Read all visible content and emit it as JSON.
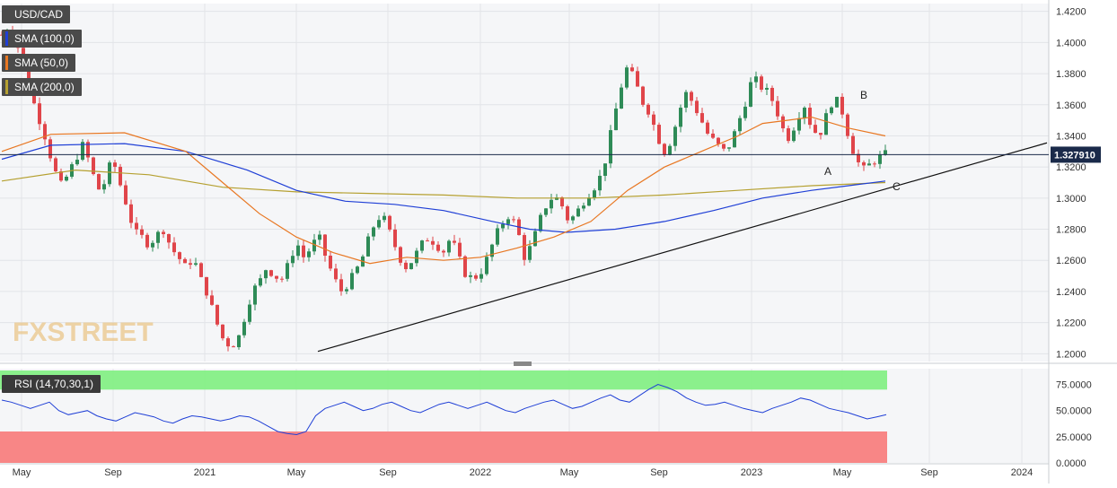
{
  "chart_data": [
    {
      "type": "candlestick",
      "title": "USD/CAD",
      "overlays": [
        {
          "name": "SMA (100,0)",
          "color": "#1f3fd6"
        },
        {
          "name": "SMA (50,0)",
          "color": "#e87722"
        },
        {
          "name": "SMA (200,0)",
          "color": "#b5a030"
        }
      ],
      "ylim": [
        1.195,
        1.425
      ],
      "y_ticks": [
        "1.4200",
        "1.4000",
        "1.3800",
        "1.3600",
        "1.3400",
        "1.3200",
        "1.3000",
        "1.2800",
        "1.2600",
        "1.2400",
        "1.2200",
        "1.2000"
      ],
      "x_ticks": [
        "May",
        "Sep",
        "2021",
        "May",
        "Sep",
        "2022",
        "May",
        "Sep",
        "2023",
        "May",
        "Sep",
        "2024"
      ],
      "last_price_label": "1.327910",
      "last_price": 1.32791,
      "annotations": [
        "A",
        "B",
        "C"
      ],
      "trendline": {
        "from": [
          "2021-05",
          "1.2015"
        ],
        "to": [
          "2024-01",
          "1.3355"
        ]
      },
      "grid": true,
      "legend_position": "top-left",
      "watermark": "FXSTREET",
      "price_path": [
        [
          0,
          1.405
        ],
        [
          3,
          1.41
        ],
        [
          6,
          1.4
        ],
        [
          9,
          1.385
        ],
        [
          12,
          1.366
        ],
        [
          15,
          1.352
        ],
        [
          18,
          1.338
        ],
        [
          21,
          1.32
        ],
        [
          24,
          1.308
        ],
        [
          27,
          1.315
        ],
        [
          30,
          1.325
        ],
        [
          33,
          1.334
        ],
        [
          36,
          1.322
        ],
        [
          39,
          1.305
        ],
        [
          42,
          1.31
        ],
        [
          45,
          1.326
        ],
        [
          48,
          1.31
        ],
        [
          51,
          1.295
        ],
        [
          54,
          1.278
        ],
        [
          57,
          1.275
        ],
        [
          60,
          1.27
        ],
        [
          63,
          1.276
        ],
        [
          66,
          1.28
        ],
        [
          69,
          1.268
        ],
        [
          72,
          1.262
        ],
        [
          75,
          1.255
        ],
        [
          78,
          1.262
        ],
        [
          81,
          1.248
        ],
        [
          84,
          1.238
        ],
        [
          87,
          1.222
        ],
        [
          90,
          1.21
        ],
        [
          93,
          1.205
        ],
        [
          96,
          1.208
        ],
        [
          99,
          1.224
        ],
        [
          102,
          1.24
        ],
        [
          105,
          1.246
        ],
        [
          108,
          1.256
        ],
        [
          111,
          1.25
        ],
        [
          114,
          1.248
        ],
        [
          117,
          1.258
        ],
        [
          120,
          1.272
        ],
        [
          123,
          1.262
        ],
        [
          126,
          1.268
        ],
        [
          129,
          1.276
        ],
        [
          132,
          1.262
        ],
        [
          135,
          1.25
        ],
        [
          138,
          1.24
        ],
        [
          141,
          1.245
        ],
        [
          144,
          1.252
        ],
        [
          147,
          1.262
        ],
        [
          150,
          1.276
        ],
        [
          153,
          1.288
        ],
        [
          156,
          1.286
        ],
        [
          159,
          1.274
        ],
        [
          162,
          1.262
        ],
        [
          165,
          1.255
        ],
        [
          168,
          1.262
        ],
        [
          171,
          1.27
        ],
        [
          174,
          1.275
        ],
        [
          177,
          1.27
        ],
        [
          180,
          1.266
        ],
        [
          183,
          1.275
        ],
        [
          186,
          1.262
        ],
        [
          189,
          1.251
        ],
        [
          192,
          1.248
        ],
        [
          195,
          1.252
        ],
        [
          198,
          1.262
        ],
        [
          201,
          1.275
        ],
        [
          204,
          1.284
        ],
        [
          207,
          1.29
        ],
        [
          210,
          1.28
        ],
        [
          213,
          1.262
        ],
        [
          216,
          1.27
        ],
        [
          219,
          1.285
        ],
        [
          222,
          1.296
        ],
        [
          225,
          1.302
        ],
        [
          228,
          1.296
        ],
        [
          231,
          1.285
        ],
        [
          234,
          1.29
        ],
        [
          237,
          1.298
        ],
        [
          240,
          1.305
        ],
        [
          243,
          1.31
        ],
        [
          246,
          1.325
        ],
        [
          249,
          1.348
        ],
        [
          252,
          1.37
        ],
        [
          255,
          1.385
        ],
        [
          258,
          1.375
        ],
        [
          261,
          1.362
        ],
        [
          264,
          1.355
        ],
        [
          267,
          1.34
        ],
        [
          270,
          1.33
        ],
        [
          273,
          1.338
        ],
        [
          276,
          1.356
        ],
        [
          279,
          1.368
        ],
        [
          282,
          1.36
        ],
        [
          285,
          1.35
        ],
        [
          288,
          1.34
        ],
        [
          291,
          1.335
        ],
        [
          294,
          1.33
        ],
        [
          297,
          1.335
        ],
        [
          300,
          1.348
        ],
        [
          303,
          1.362
        ],
        [
          306,
          1.378
        ],
        [
          309,
          1.372
        ],
        [
          312,
          1.368
        ],
        [
          315,
          1.36
        ],
        [
          318,
          1.345
        ],
        [
          321,
          1.338
        ],
        [
          324,
          1.352
        ],
        [
          327,
          1.36
        ],
        [
          330,
          1.345
        ],
        [
          333,
          1.34
        ],
        [
          336,
          1.353
        ],
        [
          339,
          1.365
        ],
        [
          342,
          1.358
        ],
        [
          345,
          1.34
        ],
        [
          348,
          1.325
        ],
        [
          351,
          1.318
        ],
        [
          354,
          1.322
        ],
        [
          357,
          1.326
        ],
        [
          360,
          1.328
        ]
      ],
      "sma50": [
        [
          0,
          1.33
        ],
        [
          20,
          1.341
        ],
        [
          50,
          1.342
        ],
        [
          75,
          1.33
        ],
        [
          90,
          1.31
        ],
        [
          105,
          1.29
        ],
        [
          120,
          1.275
        ],
        [
          135,
          1.265
        ],
        [
          150,
          1.258
        ],
        [
          165,
          1.262
        ],
        [
          180,
          1.26
        ],
        [
          195,
          1.262
        ],
        [
          210,
          1.268
        ],
        [
          225,
          1.275
        ],
        [
          240,
          1.285
        ],
        [
          255,
          1.305
        ],
        [
          270,
          1.32
        ],
        [
          285,
          1.33
        ],
        [
          300,
          1.34
        ],
        [
          310,
          1.348
        ],
        [
          320,
          1.35
        ],
        [
          330,
          1.352
        ],
        [
          345,
          1.345
        ],
        [
          360,
          1.34
        ]
      ],
      "sma100": [
        [
          0,
          1.325
        ],
        [
          20,
          1.334
        ],
        [
          50,
          1.335
        ],
        [
          75,
          1.33
        ],
        [
          100,
          1.318
        ],
        [
          120,
          1.305
        ],
        [
          140,
          1.298
        ],
        [
          160,
          1.296
        ],
        [
          180,
          1.292
        ],
        [
          200,
          1.285
        ],
        [
          215,
          1.28
        ],
        [
          230,
          1.278
        ],
        [
          250,
          1.28
        ],
        [
          270,
          1.285
        ],
        [
          290,
          1.292
        ],
        [
          310,
          1.3
        ],
        [
          330,
          1.305
        ],
        [
          345,
          1.308
        ],
        [
          360,
          1.311
        ]
      ],
      "sma200": [
        [
          0,
          1.311
        ],
        [
          30,
          1.318
        ],
        [
          60,
          1.315
        ],
        [
          90,
          1.307
        ],
        [
          120,
          1.304
        ],
        [
          150,
          1.303
        ],
        [
          180,
          1.302
        ],
        [
          210,
          1.3
        ],
        [
          240,
          1.3
        ],
        [
          270,
          1.302
        ],
        [
          300,
          1.305
        ],
        [
          330,
          1.308
        ],
        [
          360,
          1.31
        ]
      ]
    },
    {
      "type": "line",
      "title": "RSI (14,70,30,1)",
      "ylim": [
        0,
        90
      ],
      "y_ticks": [
        "75.0000",
        "50.0000",
        "25.0000",
        "0.0000"
      ],
      "overbought": 70,
      "oversold": 30,
      "values": [
        60,
        58,
        55,
        52,
        55,
        58,
        50,
        46,
        48,
        50,
        45,
        42,
        40,
        44,
        48,
        46,
        44,
        40,
        38,
        42,
        45,
        44,
        42,
        40,
        42,
        45,
        44,
        40,
        35,
        30,
        28,
        27,
        30,
        45,
        52,
        55,
        58,
        54,
        50,
        52,
        56,
        58,
        54,
        50,
        48,
        52,
        56,
        58,
        55,
        52,
        55,
        58,
        54,
        50,
        48,
        52,
        55,
        58,
        60,
        56,
        52,
        54,
        58,
        62,
        65,
        60,
        58,
        64,
        70,
        75,
        72,
        68,
        62,
        58,
        55,
        56,
        58,
        55,
        52,
        50,
        48,
        52,
        55,
        58,
        62,
        60,
        56,
        52,
        50,
        48,
        45,
        42,
        44,
        46
      ]
    }
  ]
}
